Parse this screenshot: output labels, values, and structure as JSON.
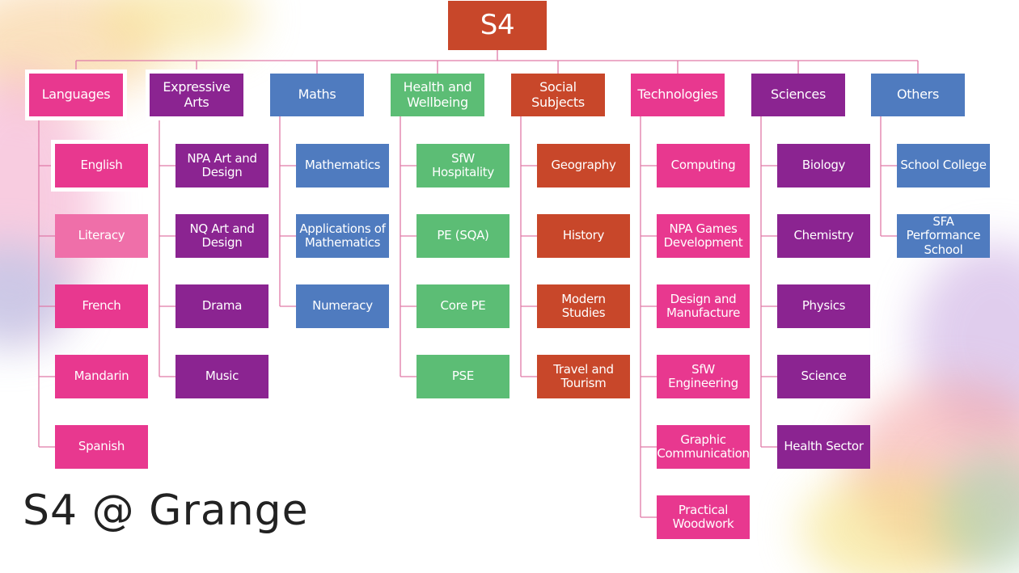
{
  "root": {
    "label": "S4",
    "color": "#c8472a"
  },
  "footer": "S4 @ Grange",
  "colors": {
    "pink": "#e8388f",
    "light_pink": "#ef6fa9",
    "purple": "#8b2491",
    "blue": "#4f7bbf",
    "green": "#5cbd75",
    "orange": "#c8472a",
    "line": "#e07aa8"
  },
  "columns": [
    {
      "name": "Languages",
      "color": "pink",
      "items": [
        {
          "label": "English",
          "color": "pink"
        },
        {
          "label": "Literacy",
          "color": "light_pink"
        },
        {
          "label": "French",
          "color": "pink"
        },
        {
          "label": "Mandarin",
          "color": "pink"
        },
        {
          "label": "Spanish",
          "color": "pink"
        }
      ]
    },
    {
      "name": "Expressive Arts",
      "color": "purple",
      "items": [
        {
          "label": "NPA Art and Design",
          "color": "purple"
        },
        {
          "label": "NQ Art and Design",
          "color": "purple"
        },
        {
          "label": "Drama",
          "color": "purple"
        },
        {
          "label": "Music",
          "color": "purple"
        }
      ]
    },
    {
      "name": "Maths",
      "color": "blue",
      "items": [
        {
          "label": "Mathematics",
          "color": "blue"
        },
        {
          "label": "Applications of Mathematics",
          "color": "blue"
        },
        {
          "label": "Numeracy",
          "color": "blue"
        }
      ]
    },
    {
      "name": "Health and Wellbeing",
      "color": "green",
      "items": [
        {
          "label": "SfW Hospitality",
          "color": "green"
        },
        {
          "label": "PE (SQA)",
          "color": "green"
        },
        {
          "label": "Core PE",
          "color": "green"
        },
        {
          "label": "PSE",
          "color": "green"
        }
      ]
    },
    {
      "name": "Social Subjects",
      "color": "orange",
      "items": [
        {
          "label": "Geography",
          "color": "orange"
        },
        {
          "label": "History",
          "color": "orange"
        },
        {
          "label": "Modern Studies",
          "color": "orange"
        },
        {
          "label": "Travel and Tourism",
          "color": "orange"
        }
      ]
    },
    {
      "name": "Technologies",
      "color": "pink",
      "items": [
        {
          "label": "Computing",
          "color": "pink"
        },
        {
          "label": "NPA Games Development",
          "color": "pink"
        },
        {
          "label": "Design and Manufacture",
          "color": "pink"
        },
        {
          "label": "SfW Engineering",
          "color": "pink"
        },
        {
          "label": "Graphic Communication",
          "color": "pink"
        },
        {
          "label": "Practical Woodwork",
          "color": "pink"
        }
      ]
    },
    {
      "name": "Sciences",
      "color": "purple",
      "items": [
        {
          "label": "Biology",
          "color": "purple"
        },
        {
          "label": "Chemistry",
          "color": "purple"
        },
        {
          "label": "Physics",
          "color": "purple"
        },
        {
          "label": "Science",
          "color": "purple"
        },
        {
          "label": "Health Sector",
          "color": "purple"
        }
      ]
    },
    {
      "name": "Others",
      "color": "blue",
      "items": [
        {
          "label": "School College",
          "color": "blue"
        },
        {
          "label": "SFA Performance School",
          "color": "blue"
        }
      ]
    }
  ]
}
